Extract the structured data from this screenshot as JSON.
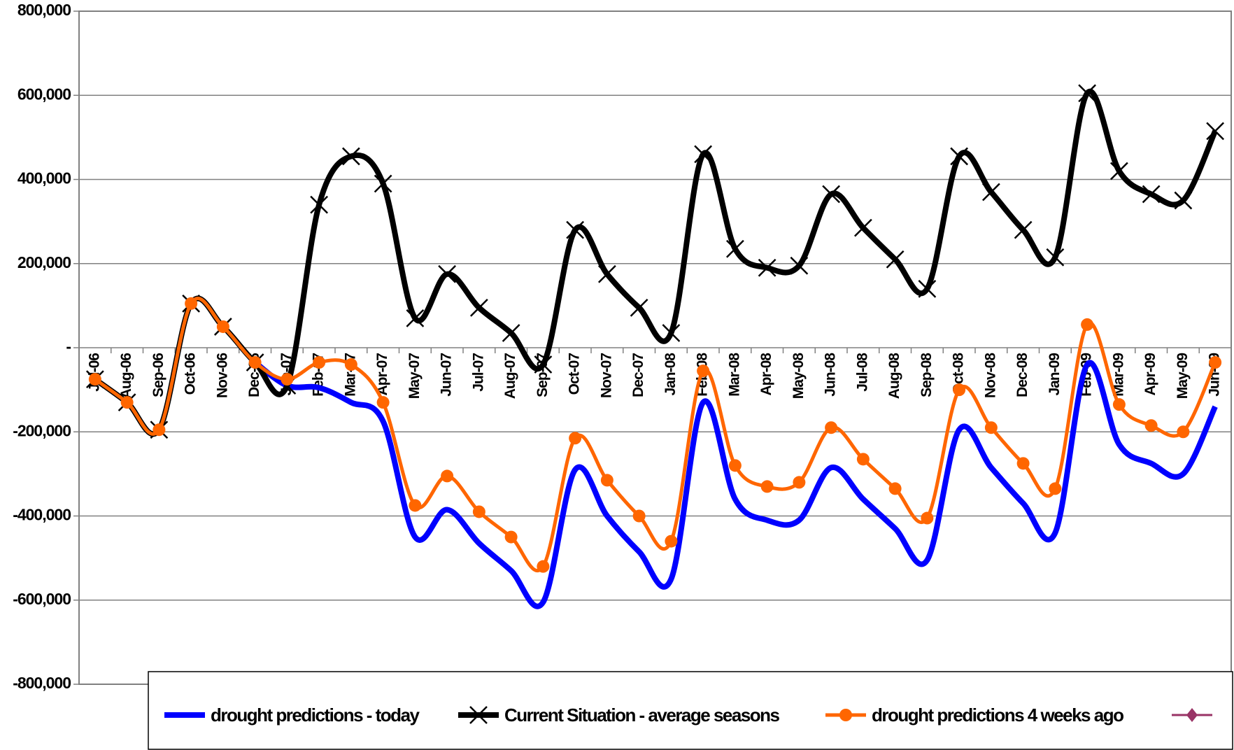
{
  "chart_data": {
    "type": "line",
    "categories": [
      "Jul-06",
      "Aug-06",
      "Sep-06",
      "Oct-06",
      "Nov-06",
      "Dec-06",
      "Jan-07",
      "Feb-07",
      "Mar-07",
      "Apr-07",
      "May-07",
      "Jun-07",
      "Jul-07",
      "Aug-07",
      "Sep-07",
      "Oct-07",
      "Nov-07",
      "Dec-07",
      "Jan-08",
      "Feb-08",
      "Mar-08",
      "Apr-08",
      "May-08",
      "Jun-08",
      "Jul-08",
      "Aug-08",
      "Sep-08",
      "Oct-08",
      "Nov-08",
      "Dec-08",
      "Jan-09",
      "Feb-09",
      "Mar-09",
      "Apr-09",
      "May-09",
      "Jun-09"
    ],
    "series": [
      {
        "name": "drought predictions - today",
        "color": "#0000ff",
        "marker": "none",
        "values": [
          null,
          null,
          null,
          null,
          null,
          -35000,
          -90000,
          -95000,
          -130000,
          -175000,
          -450000,
          -385000,
          -465000,
          -530000,
          -605000,
          -290000,
          -400000,
          -485000,
          -550000,
          -130000,
          -360000,
          -410000,
          -410000,
          -285000,
          -360000,
          -430000,
          -505000,
          -195000,
          -285000,
          -370000,
          -440000,
          -40000,
          -230000,
          -275000,
          -300000,
          -140000
        ]
      },
      {
        "name": "Current Situation - average seasons",
        "color": "#000000",
        "marker": "x",
        "values": [
          -75000,
          -130000,
          -195000,
          105000,
          50000,
          -35000,
          -90000,
          340000,
          455000,
          390000,
          70000,
          175000,
          95000,
          35000,
          -40000,
          280000,
          175000,
          95000,
          35000,
          460000,
          235000,
          190000,
          195000,
          365000,
          285000,
          210000,
          140000,
          455000,
          370000,
          280000,
          215000,
          605000,
          420000,
          365000,
          350000,
          515000
        ]
      },
      {
        "name": "drought predictions 4 weeks ago",
        "color": "#ff6600",
        "marker": "circle",
        "values": [
          -75000,
          -130000,
          -195000,
          105000,
          50000,
          -35000,
          -75000,
          -35000,
          -40000,
          -130000,
          -375000,
          -305000,
          -390000,
          -450000,
          -520000,
          -215000,
          -315000,
          -400000,
          -460000,
          -55000,
          -280000,
          -330000,
          -320000,
          -190000,
          -265000,
          -335000,
          -405000,
          -100000,
          -190000,
          -275000,
          -335000,
          55000,
          -135000,
          -185000,
          -200000,
          -35000
        ]
      }
    ],
    "ylim": [
      -800000,
      800000
    ],
    "yticks": [
      {
        "value": -800000,
        "label": "-800,000"
      },
      {
        "value": -600000,
        "label": "-600,000"
      },
      {
        "value": -400000,
        "label": "-400,000"
      },
      {
        "value": -200000,
        "label": "-200,000"
      },
      {
        "value": 0,
        "label": "-"
      },
      {
        "value": 200000,
        "label": "200,000"
      },
      {
        "value": 400000,
        "label": "400,000"
      },
      {
        "value": 600000,
        "label": "600,000"
      },
      {
        "value": 800000,
        "label": "800,000"
      }
    ],
    "grid": true,
    "smooth": true,
    "legend": "bottom"
  }
}
